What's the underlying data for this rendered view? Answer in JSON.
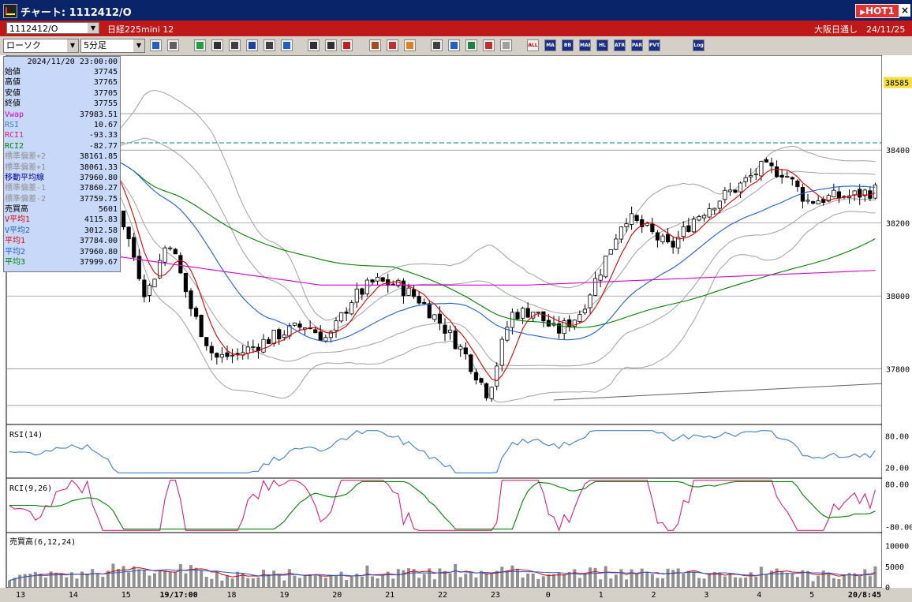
{
  "window": {
    "title": "チャート: 1112412/O",
    "hot_label": "HOT1",
    "close_glyph": "×"
  },
  "infobar": {
    "symbol": "1112412/O",
    "product": "日経225mini 12",
    "session": "大阪日通し　24/11/25"
  },
  "toolbar": {
    "chart_type": "ローソク",
    "interval": "5分足",
    "text_buttons": [
      "ALL",
      "MA",
      "BB",
      "MAE",
      "HL",
      "ATR",
      "PAR",
      "PVT",
      "Log"
    ]
  },
  "colors": {
    "candle_up": "#ffffff",
    "candle_down": "#000000",
    "ma1": "#e00000",
    "ma2": "#1e5ed8",
    "ma3": "#008000",
    "vwap": "#d000d0",
    "band": "#a0a0a0",
    "rsi": "#3a7fd5",
    "rci1": "#e0207a",
    "rci2": "#008000",
    "grid": "#808080",
    "dashed": "#008080"
  },
  "panel": {
    "datetime": "2024/11/20  23:00:00",
    "rows": [
      {
        "label": "始値",
        "value": "37745",
        "color": "#000000"
      },
      {
        "label": "高値",
        "value": "37765",
        "color": "#000000"
      },
      {
        "label": "安値",
        "value": "37705",
        "color": "#000000"
      },
      {
        "label": "終値",
        "value": "37755",
        "color": "#000000"
      },
      {
        "label": "Vwap",
        "value": "37983.51",
        "color": "#d000d0"
      },
      {
        "label": "RSI",
        "value": "10.67",
        "color": "#3a7fd5"
      },
      {
        "label": "RCI1",
        "value": "-93.33",
        "color": "#e0207a"
      },
      {
        "label": "RCI2",
        "value": "-82.77",
        "color": "#008000"
      },
      {
        "label": "標準偏差+2",
        "value": "38161.85",
        "color": "#909090"
      },
      {
        "label": "標準偏差+1",
        "value": "38061.33",
        "color": "#909090"
      },
      {
        "label": "移動平均線",
        "value": "37960.80",
        "color": "#0000a0"
      },
      {
        "label": "標準偏差-1",
        "value": "37860.27",
        "color": "#909090"
      },
      {
        "label": "標準偏差-2",
        "value": "37759.75",
        "color": "#909090"
      },
      {
        "label": "売買高",
        "value": "5601",
        "color": "#000000"
      },
      {
        "label": "V平均1",
        "value": "4115.83",
        "color": "#e00000"
      },
      {
        "label": "V平均2",
        "value": "3012.58",
        "color": "#1e5ed8"
      },
      {
        "label": "平均1",
        "value": "37784.00",
        "color": "#e00000"
      },
      {
        "label": "平均2",
        "value": "37960.80",
        "color": "#1e5ed8"
      },
      {
        "label": "平均3",
        "value": "37999.67",
        "color": "#008000"
      }
    ]
  },
  "panes": {
    "rsi_label": "RSI(14)",
    "rci_label": "RCI(9,26)",
    "vol_label": "売買高(6,12,24)"
  },
  "chart_data": {
    "type": "candlestick",
    "price_ticks": [
      "38400",
      "38200",
      "38000",
      "37800"
    ],
    "price_ticks_values": [
      38400,
      38200,
      38000,
      37800
    ],
    "current_price_label": "38585",
    "current_price": 38585,
    "rsi_ticks": [
      "80.00",
      "20.00"
    ],
    "rsi_ticks_values": [
      80,
      20
    ],
    "rci_ticks": [
      "80.00",
      "-80.00"
    ],
    "rci_ticks_values": [
      80,
      -80
    ],
    "vol_ticks": [
      "10000",
      "5000",
      "0"
    ],
    "vol_ticks_values": [
      10000,
      5000,
      0
    ],
    "time_labels": [
      "13",
      "14",
      "15",
      "19/17:00",
      "18",
      "19",
      "20",
      "21",
      "22",
      "23",
      "0",
      "1",
      "2",
      "3",
      "4",
      "5",
      "20/8:45"
    ],
    "close_path": [
      38380,
      38360,
      38390,
      38420,
      38380,
      38200,
      38000,
      38160,
      37960,
      37830,
      37840,
      37870,
      37900,
      37920,
      37880,
      37990,
      38040,
      38030,
      37990,
      37920,
      37840,
      37730,
      37950,
      37960,
      37900,
      37950,
      38080,
      38220,
      38180,
      38130,
      38210,
      38260,
      38300,
      38350,
      38340,
      38260,
      38270,
      38275,
      38290
    ]
  }
}
